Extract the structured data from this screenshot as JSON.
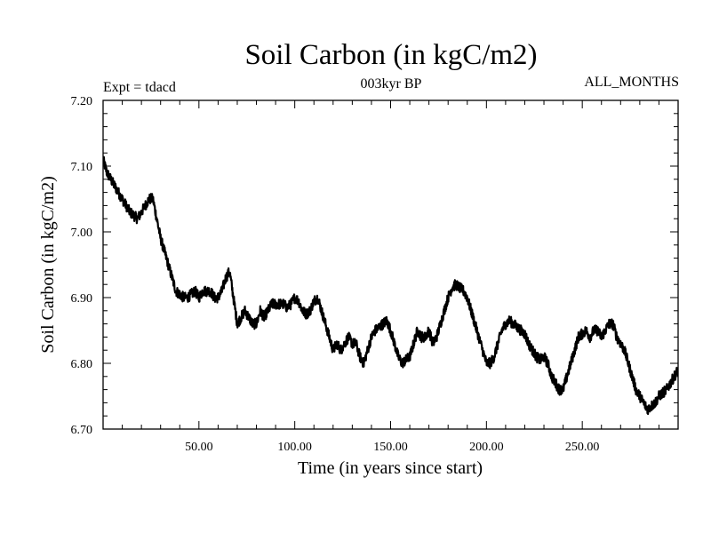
{
  "chart_data": {
    "type": "line",
    "title": "Soil Carbon (in kgC/m2)",
    "subtitle": "003kyr BP",
    "annotation_left": "Expt = tdacd",
    "annotation_right": "ALL_MONTHS",
    "xlabel": "Time (in years since start)",
    "ylabel": "Soil Carbon (in kgC/m2)",
    "xlim": [
      0,
      300
    ],
    "ylim": [
      6.7,
      7.2
    ],
    "xticks": [
      50,
      100,
      150,
      200,
      250
    ],
    "xtick_labels": [
      "50.00",
      "100.00",
      "150.00",
      "200.00",
      "250.00"
    ],
    "yticks": [
      6.7,
      6.8,
      6.9,
      7.0,
      7.1,
      7.2
    ],
    "ytick_labels": [
      "6.70",
      "6.80",
      "6.90",
      "7.00",
      "7.10",
      "7.20"
    ],
    "series": [
      {
        "name": "Soil Carbon",
        "color": "#000000",
        "x": [
          0,
          2,
          4,
          6,
          8,
          10,
          12,
          14,
          16,
          18,
          20,
          22,
          24,
          26,
          28,
          30,
          32,
          34,
          36,
          38,
          40,
          42,
          44,
          46,
          48,
          50,
          52,
          54,
          56,
          58,
          60,
          62,
          64,
          66,
          68,
          70,
          72,
          74,
          76,
          78,
          80,
          82,
          84,
          86,
          88,
          90,
          92,
          94,
          96,
          98,
          100,
          102,
          104,
          106,
          108,
          110,
          112,
          114,
          116,
          118,
          120,
          122,
          124,
          126,
          128,
          130,
          132,
          134,
          136,
          138,
          140,
          142,
          144,
          146,
          148,
          150,
          152,
          154,
          156,
          158,
          160,
          162,
          164,
          166,
          168,
          170,
          172,
          174,
          176,
          178,
          180,
          182,
          184,
          186,
          188,
          190,
          192,
          194,
          196,
          198,
          200,
          202,
          204,
          206,
          208,
          210,
          212,
          214,
          216,
          218,
          220,
          222,
          224,
          226,
          228,
          230,
          232,
          234,
          236,
          238,
          240,
          242,
          244,
          246,
          248,
          250,
          252,
          254,
          256,
          258,
          260,
          262,
          264,
          266,
          268,
          270,
          272,
          274,
          276,
          278,
          280,
          282,
          284,
          286,
          288,
          290,
          292,
          294,
          296,
          298,
          300
        ],
        "values": [
          7.11,
          7.09,
          7.08,
          7.07,
          7.06,
          7.05,
          7.04,
          7.03,
          7.025,
          7.02,
          7.03,
          7.04,
          7.05,
          7.05,
          7.02,
          6.99,
          6.97,
          6.95,
          6.93,
          6.91,
          6.905,
          6.9,
          6.9,
          6.905,
          6.91,
          6.9,
          6.91,
          6.91,
          6.91,
          6.9,
          6.9,
          6.91,
          6.93,
          6.94,
          6.9,
          6.86,
          6.87,
          6.88,
          6.87,
          6.86,
          6.86,
          6.88,
          6.87,
          6.88,
          6.89,
          6.89,
          6.89,
          6.89,
          6.885,
          6.89,
          6.9,
          6.895,
          6.88,
          6.875,
          6.88,
          6.895,
          6.9,
          6.88,
          6.86,
          6.84,
          6.82,
          6.83,
          6.82,
          6.83,
          6.84,
          6.83,
          6.83,
          6.81,
          6.8,
          6.82,
          6.84,
          6.85,
          6.855,
          6.86,
          6.865,
          6.85,
          6.83,
          6.81,
          6.8,
          6.805,
          6.81,
          6.83,
          6.85,
          6.84,
          6.84,
          6.85,
          6.83,
          6.84,
          6.86,
          6.88,
          6.9,
          6.915,
          6.92,
          6.915,
          6.91,
          6.9,
          6.88,
          6.86,
          6.84,
          6.82,
          6.8,
          6.8,
          6.81,
          6.83,
          6.85,
          6.86,
          6.865,
          6.86,
          6.855,
          6.85,
          6.845,
          6.83,
          6.82,
          6.81,
          6.805,
          6.81,
          6.8,
          6.78,
          6.77,
          6.76,
          6.76,
          6.78,
          6.8,
          6.82,
          6.84,
          6.845,
          6.85,
          6.84,
          6.85,
          6.85,
          6.84,
          6.85,
          6.86,
          6.86,
          6.84,
          6.83,
          6.82,
          6.8,
          6.78,
          6.76,
          6.75,
          6.74,
          6.73,
          6.735,
          6.74,
          6.75,
          6.755,
          6.76,
          6.77,
          6.78,
          6.79
        ]
      }
    ]
  }
}
